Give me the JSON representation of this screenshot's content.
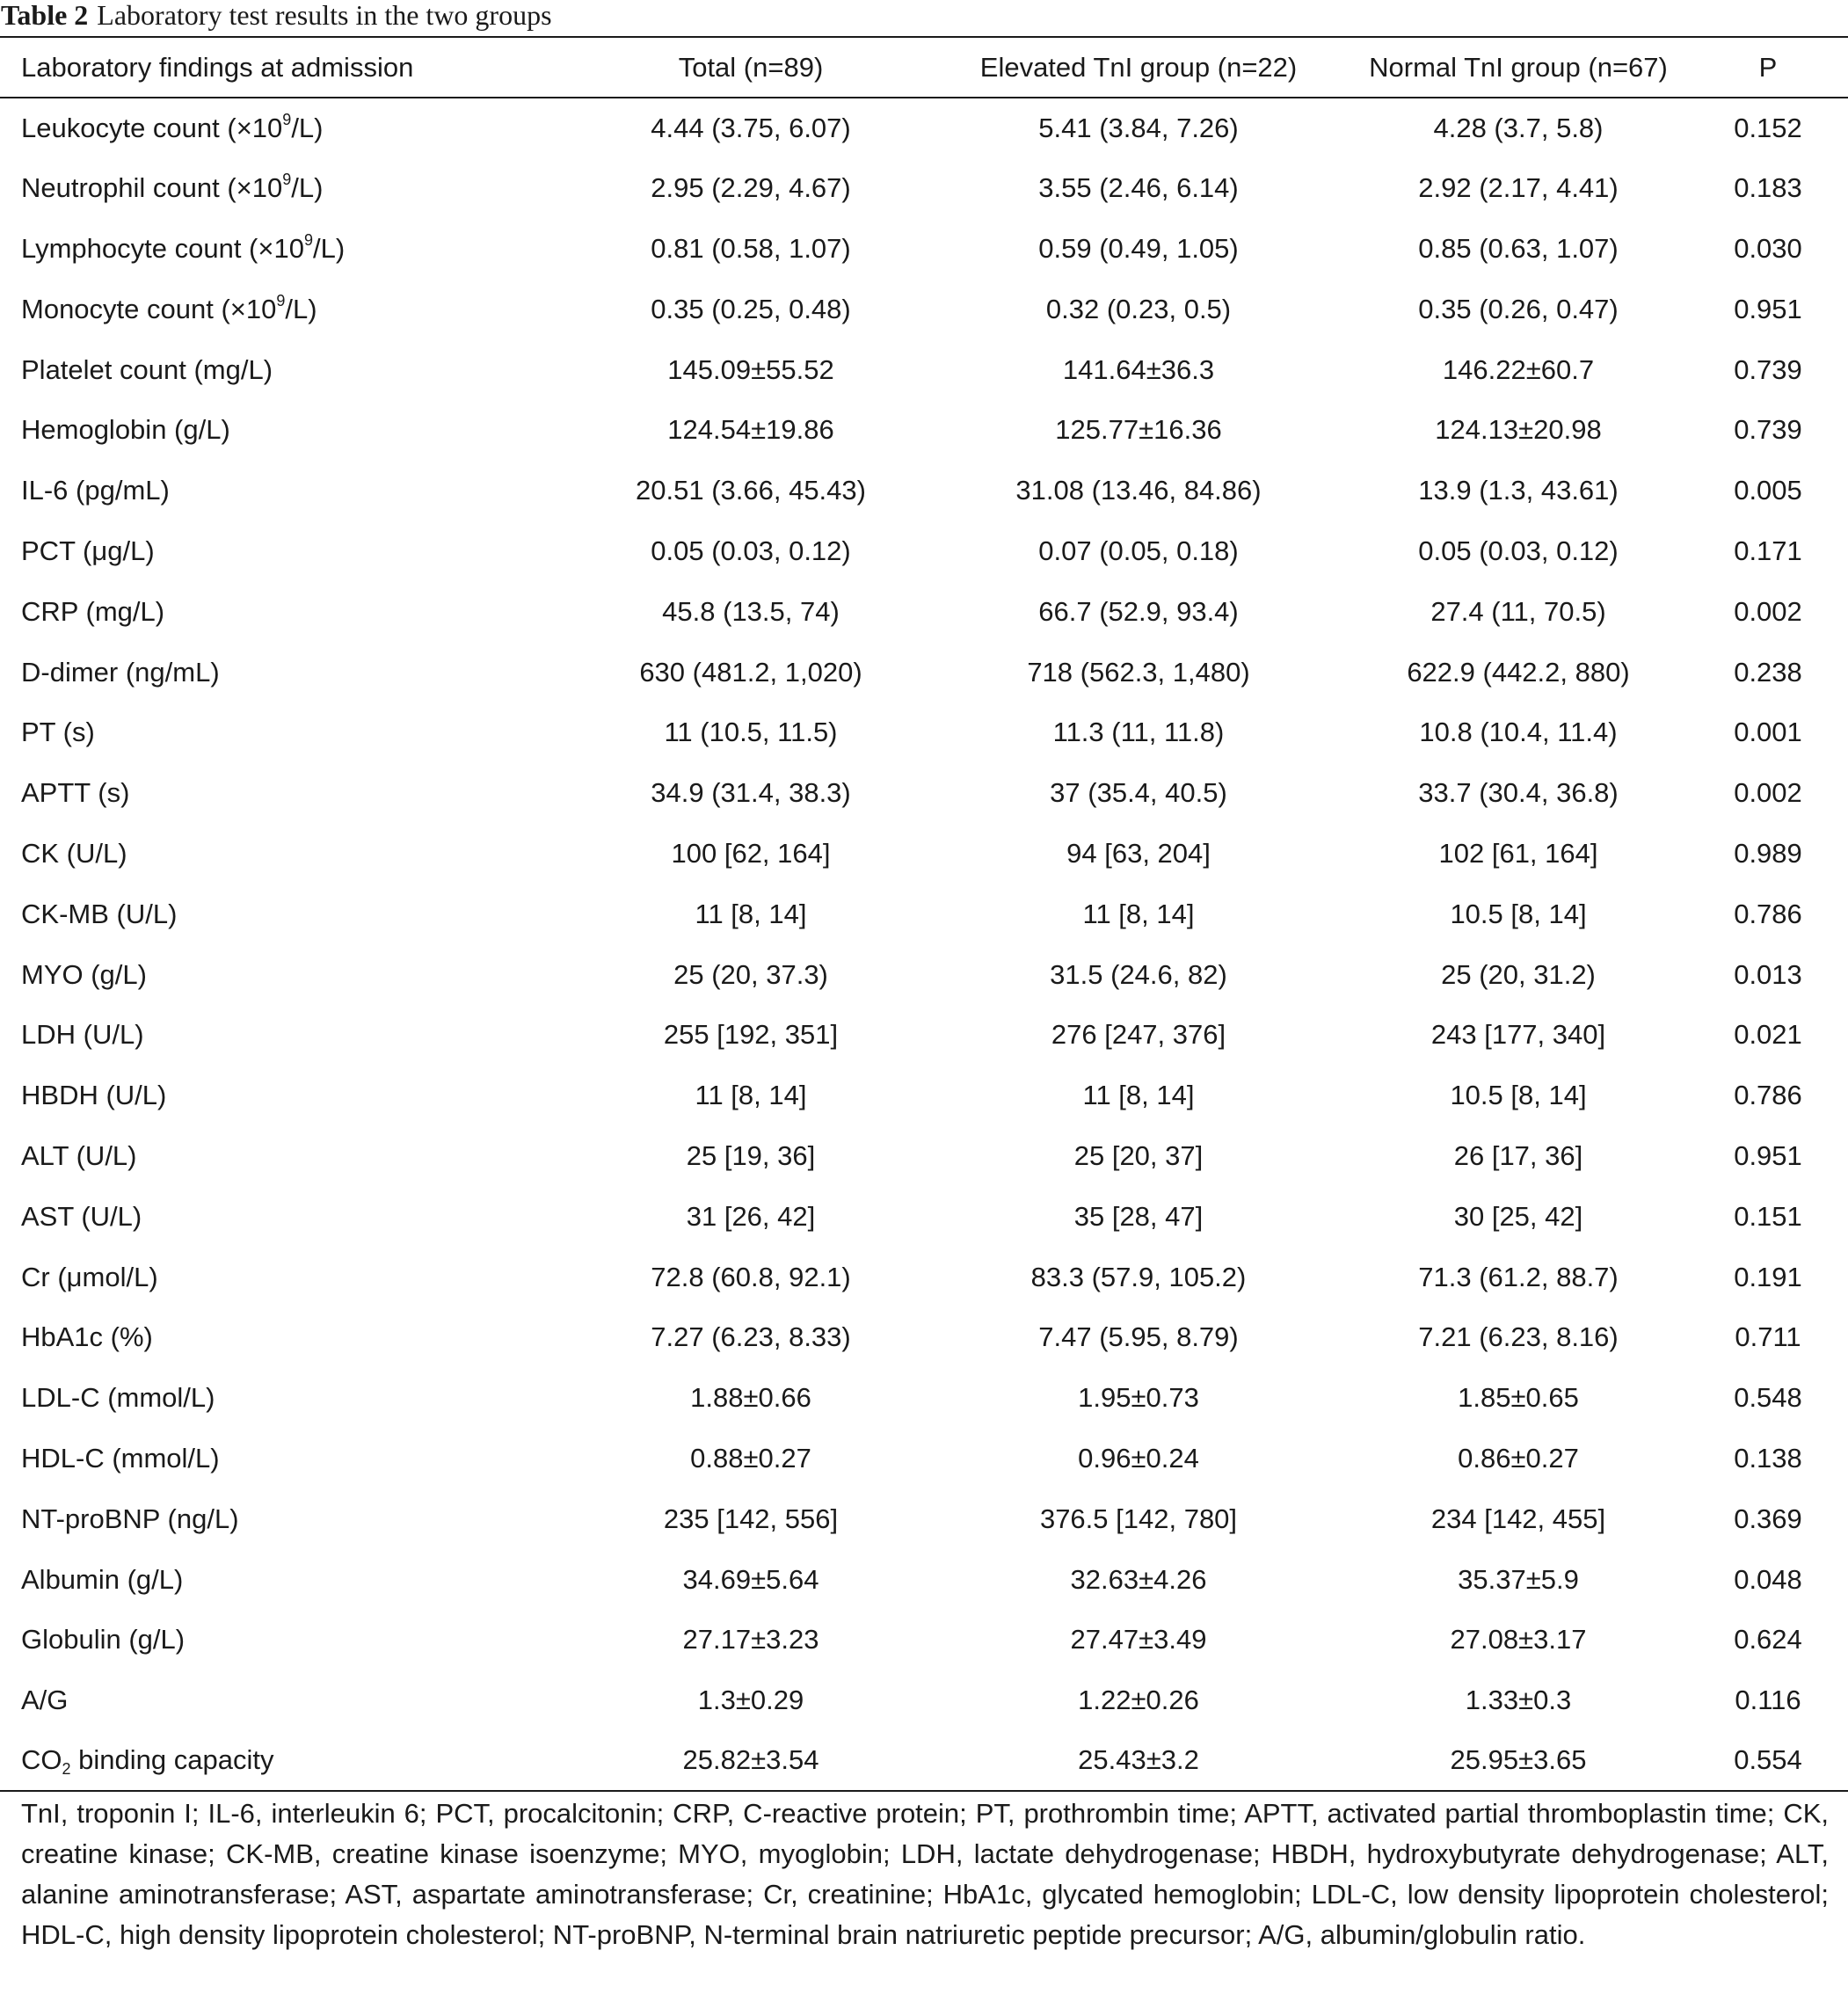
{
  "caption": {
    "label": "Table 2",
    "title": "Laboratory test results in the two groups"
  },
  "header": {
    "col0": "Laboratory findings at admission",
    "col1": "Total (n=89)",
    "col2": "Elevated TnI group (n=22)",
    "col3": "Normal TnI group (n=67)",
    "col4": "P"
  },
  "rows": [
    {
      "pre": "Leukocyte count (×10",
      "sup": "9",
      "post": "/L)",
      "total": "4.44 (3.75, 6.07)",
      "elevated": "5.41 (3.84, 7.26)",
      "normal": "4.28 (3.7, 5.8)",
      "p": "0.152"
    },
    {
      "pre": "Neutrophil count (×10",
      "sup": "9",
      "post": "/L)",
      "total": "2.95 (2.29, 4.67)",
      "elevated": "3.55 (2.46, 6.14)",
      "normal": "2.92 (2.17, 4.41)",
      "p": "0.183"
    },
    {
      "pre": "Lymphocyte count (×10",
      "sup": "9",
      "post": "/L)",
      "total": "0.81 (0.58, 1.07)",
      "elevated": "0.59 (0.49, 1.05)",
      "normal": "0.85 (0.63, 1.07)",
      "p": "0.030"
    },
    {
      "pre": "Monocyte count (×10",
      "sup": "9",
      "post": "/L)",
      "total": "0.35 (0.25, 0.48)",
      "elevated": "0.32 (0.23, 0.5)",
      "normal": "0.35 (0.26, 0.47)",
      "p": "0.951"
    },
    {
      "pre": "Platelet count (mg/L)",
      "total": "145.09±55.52",
      "elevated": "141.64±36.3",
      "normal": "146.22±60.7",
      "p": "0.739"
    },
    {
      "pre": "Hemoglobin (g/L)",
      "total": "124.54±19.86",
      "elevated": "125.77±16.36",
      "normal": "124.13±20.98",
      "p": "0.739"
    },
    {
      "pre": "IL-6 (pg/mL)",
      "total": "20.51 (3.66, 45.43)",
      "elevated": "31.08 (13.46, 84.86)",
      "normal": "13.9 (1.3, 43.61)",
      "p": "0.005"
    },
    {
      "pre": "PCT (μg/L)",
      "total": "0.05 (0.03, 0.12)",
      "elevated": "0.07 (0.05, 0.18)",
      "normal": "0.05 (0.03, 0.12)",
      "p": "0.171"
    },
    {
      "pre": "CRP (mg/L)",
      "total": "45.8 (13.5, 74)",
      "elevated": "66.7 (52.9, 93.4)",
      "normal": "27.4 (11, 70.5)",
      "p": "0.002"
    },
    {
      "pre": "D-dimer (ng/mL)",
      "total": "630 (481.2, 1,020)",
      "elevated": "718 (562.3, 1,480)",
      "normal": "622.9 (442.2, 880)",
      "p": "0.238"
    },
    {
      "pre": "PT (s)",
      "total": "11 (10.5, 11.5)",
      "elevated": "11.3 (11, 11.8)",
      "normal": "10.8 (10.4, 11.4)",
      "p": "0.001"
    },
    {
      "pre": "APTT (s)",
      "total": "34.9 (31.4, 38.3)",
      "elevated": "37 (35.4, 40.5)",
      "normal": "33.7 (30.4, 36.8)",
      "p": "0.002"
    },
    {
      "pre": "CK (U/L)",
      "total": "100 [62, 164]",
      "elevated": "94 [63, 204]",
      "normal": "102 [61, 164]",
      "p": "0.989"
    },
    {
      "pre": "CK-MB (U/L)",
      "total": "11 [8, 14]",
      "elevated": "11 [8, 14]",
      "normal": "10.5 [8, 14]",
      "p": "0.786"
    },
    {
      "pre": "MYO (g/L)",
      "total": "25 (20, 37.3)",
      "elevated": "31.5 (24.6, 82)",
      "normal": "25 (20, 31.2)",
      "p": "0.013"
    },
    {
      "pre": "LDH (U/L)",
      "total": "255 [192, 351]",
      "elevated": "276 [247, 376]",
      "normal": "243 [177, 340]",
      "p": "0.021"
    },
    {
      "pre": "HBDH (U/L)",
      "total": "11 [8, 14]",
      "elevated": "11 [8, 14]",
      "normal": "10.5 [8, 14]",
      "p": "0.786"
    },
    {
      "pre": "ALT (U/L)",
      "total": "25 [19, 36]",
      "elevated": "25 [20, 37]",
      "normal": "26 [17, 36]",
      "p": "0.951"
    },
    {
      "pre": "AST (U/L)",
      "total": "31 [26, 42]",
      "elevated": "35 [28, 47]",
      "normal": "30 [25, 42]",
      "p": "0.151"
    },
    {
      "pre": "Cr (μmol/L)",
      "total": "72.8 (60.8, 92.1)",
      "elevated": "83.3 (57.9, 105.2)",
      "normal": "71.3 (61.2, 88.7)",
      "p": "0.191"
    },
    {
      "pre": "HbA1c (%)",
      "total": "7.27 (6.23, 8.33)",
      "elevated": "7.47 (5.95, 8.79)",
      "normal": "7.21 (6.23, 8.16)",
      "p": "0.711"
    },
    {
      "pre": "LDL-C (mmol/L)",
      "total": "1.88±0.66",
      "elevated": "1.95±0.73",
      "normal": "1.85±0.65",
      "p": "0.548"
    },
    {
      "pre": "HDL-C (mmol/L)",
      "total": "0.88±0.27",
      "elevated": "0.96±0.24",
      "normal": "0.86±0.27",
      "p": "0.138"
    },
    {
      "pre": "NT-proBNP (ng/L)",
      "total": "235 [142, 556]",
      "elevated": "376.5 [142, 780]",
      "normal": "234 [142, 455]",
      "p": "0.369"
    },
    {
      "pre": "Albumin (g/L)",
      "total": "34.69±5.64",
      "elevated": "32.63±4.26",
      "normal": "35.37±5.9",
      "p": "0.048"
    },
    {
      "pre": "Globulin (g/L)",
      "total": "27.17±3.23",
      "elevated": "27.47±3.49",
      "normal": "27.08±3.17",
      "p": "0.624"
    },
    {
      "pre": "A/G",
      "total": "1.3±0.29",
      "elevated": "1.22±0.26",
      "normal": "1.33±0.3",
      "p": "0.116"
    },
    {
      "pre": "CO",
      "sub": "2",
      "post": " binding capacity",
      "total": "25.82±3.54",
      "elevated": "25.43±3.2",
      "normal": "25.95±3.65",
      "p": "0.554"
    }
  ],
  "footnote": "TnI, troponin I; IL-6, interleukin 6; PCT, procalcitonin; CRP, C-reactive protein; PT, prothrombin time; APTT, activated partial thromboplastin time; CK, creatine kinase; CK-MB, creatine kinase isoenzyme; MYO, myoglobin; LDH, lactate dehydrogenase; HBDH, hydroxybutyrate dehydrogenase; ALT, alanine aminotransferase; AST, aspartate aminotransferase; Cr, creatinine; HbA1c, glycated hemoglobin; LDL-C, low density lipoprotein cholesterol; HDL-C, high density lipoprotein cholesterol; NT-proBNP, N-terminal brain natriuretic peptide precursor; A/G, albumin/globulin ratio."
}
